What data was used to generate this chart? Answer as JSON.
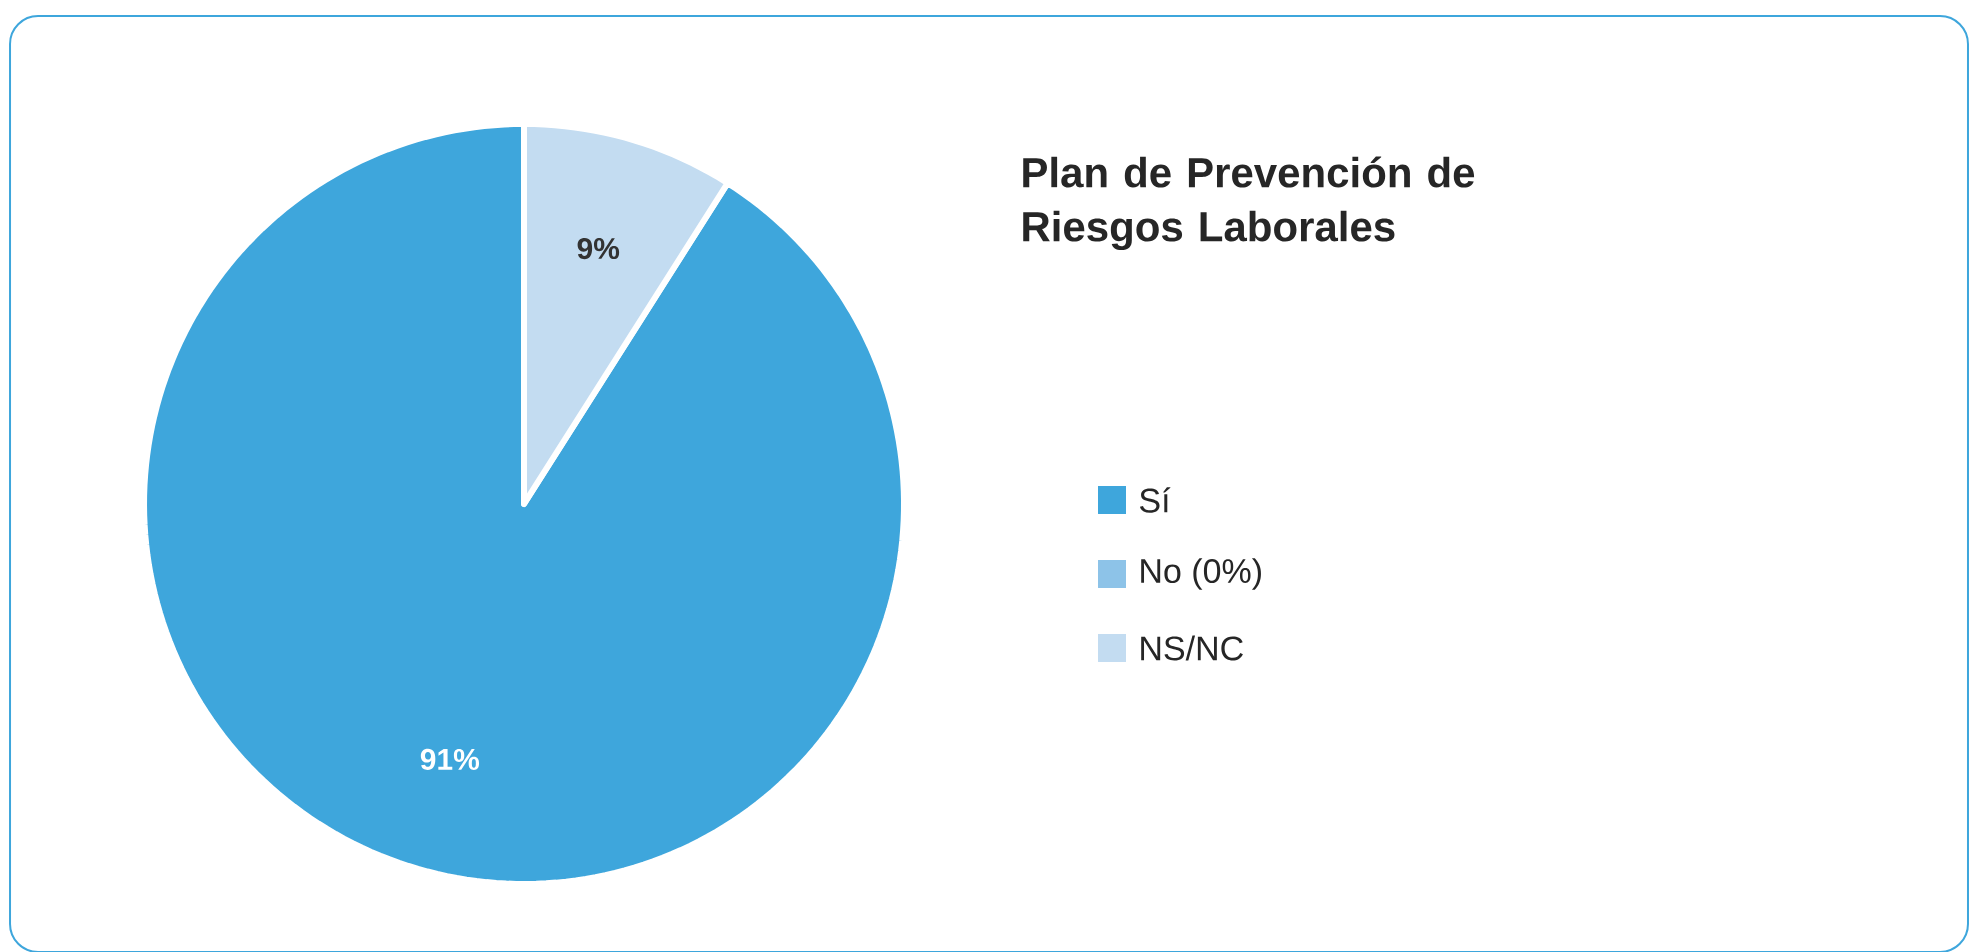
{
  "chart_data": {
    "type": "pie",
    "title": "Plan de Prevención de Riesgos Laborales",
    "categories": [
      "Sí",
      "No (0%)",
      "NS/NC"
    ],
    "values": [
      91,
      0,
      9
    ],
    "colors": [
      "#3ea6dc",
      "#8dc3e8",
      "#c3dcf1"
    ],
    "value_labels": [
      "91%",
      null,
      "9%"
    ],
    "legend": "right"
  }
}
